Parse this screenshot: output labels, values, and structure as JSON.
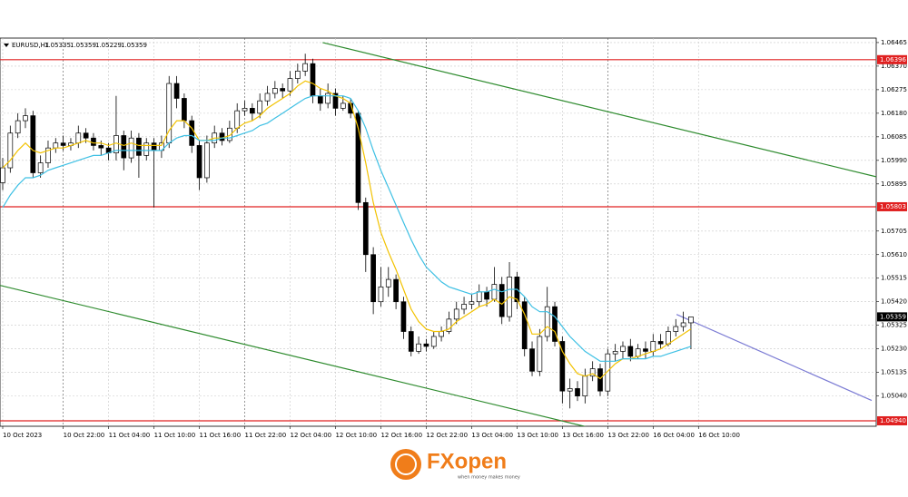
{
  "chart_data": {
    "type": "candlestick",
    "symbol": "EURUSD,H1",
    "ylim": [
      1.04918,
      1.06483
    ],
    "yticks": [
      1.06465,
      {
        "value": 1.0637,
        "label": "1.06370"
      },
      1.06275,
      {
        "value": 1.0618,
        "label": "1.06180"
      },
      1.06085,
      {
        "value": 1.0599,
        "label": "1.05990"
      },
      1.05895,
      1.05705,
      {
        "value": 1.0561,
        "label": "1.05610"
      },
      1.05515,
      {
        "value": 1.0542,
        "label": "1.05420"
      },
      1.05325,
      {
        "value": 1.0523,
        "label": "1.05230"
      },
      1.05135,
      {
        "value": 1.0504,
        "label": "1.05040"
      }
    ],
    "xlim": [
      -0.36,
      115.5
    ],
    "xticks": [
      {
        "value": 0,
        "label": "10 Oct 2023"
      },
      {
        "value": 8,
        "label": "10 Oct 22:00"
      },
      {
        "value": 14,
        "label": "11 Oct 04:00"
      },
      {
        "value": 20,
        "label": "11 Oct 10:00"
      },
      {
        "value": 26,
        "label": "11 Oct 16:00"
      },
      {
        "value": 32,
        "label": "11 Oct 22:00"
      },
      {
        "value": 38,
        "label": "12 Oct 04:00"
      },
      {
        "value": 44,
        "label": "12 Oct 10:00"
      },
      {
        "value": 50,
        "label": "12 Oct 16:00"
      },
      {
        "value": 56,
        "label": "12 Oct 22:00"
      },
      {
        "value": 62,
        "label": "13 Oct 04:00"
      },
      {
        "value": 68,
        "label": "13 Oct 10:00"
      },
      {
        "value": 74,
        "label": "13 Oct 16:00"
      },
      {
        "value": 80,
        "label": "13 Oct 22:00"
      },
      {
        "value": 86,
        "label": "16 Oct 04:00"
      },
      {
        "value": 92,
        "label": "16 Oct 10:00"
      }
    ],
    "grid": true,
    "up_color": "#ffffff",
    "down_color": "#000000",
    "ohlc": {
      "open": [
        1.059,
        1.0596,
        1.061,
        1.0615,
        1.0617,
        1.0594,
        1.0598,
        1.0604,
        1.0606,
        1.0605,
        1.0606,
        1.061,
        1.0608,
        1.0605,
        1.0604,
        1.0602,
        1.0609,
        1.06,
        1.0608,
        1.0601,
        1.0606,
        1.0603,
        1.0606,
        1.063,
        1.0624,
        1.0615,
        1.0605,
        1.0592,
        1.0606,
        1.061,
        1.0607,
        1.0612,
        1.0619,
        1.062,
        1.0618,
        1.0623,
        1.0626,
        1.0628,
        1.0627,
        1.0632,
        1.0635,
        1.0638,
        1.0625,
        1.0622,
        1.0626,
        1.062,
        1.0622,
        1.0618,
        1.0582,
        1.0561,
        1.0542,
        1.0548,
        1.0551,
        1.0542,
        1.053,
        1.0522,
        1.0525,
        1.0524,
        1.0528,
        1.053,
        1.0535,
        1.0539,
        1.0541,
        1.0542,
        1.0546,
        1.0543,
        1.0549,
        1.0536,
        1.0552,
        1.0542,
        1.0523,
        1.0514,
        1.0528,
        1.054,
        1.0526,
        1.0506,
        1.0507,
        1.0504,
        1.0512,
        1.0515,
        1.0506,
        1.0521,
        1.0522,
        1.0524,
        1.052,
        1.0523,
        1.0522,
        1.0526,
        1.0525,
        1.053,
        1.0532,
        1.05335
      ],
      "high": [
        1.06,
        1.0613,
        1.0618,
        1.062,
        1.0619,
        1.0601,
        1.0607,
        1.0608,
        1.0609,
        1.0608,
        1.0613,
        1.0612,
        1.061,
        1.0607,
        1.0606,
        1.0625,
        1.0611,
        1.0611,
        1.061,
        1.0608,
        1.0608,
        1.0609,
        1.0633,
        1.0633,
        1.0626,
        1.0617,
        1.0607,
        1.0609,
        1.0613,
        1.0612,
        1.0615,
        1.0622,
        1.0623,
        1.0622,
        1.0626,
        1.0629,
        1.0631,
        1.063,
        1.0635,
        1.0638,
        1.0642,
        1.064,
        1.0628,
        1.063,
        1.0628,
        1.0625,
        1.0624,
        1.0619,
        1.0584,
        1.0564,
        1.0556,
        1.0556,
        1.0553,
        1.0544,
        1.0532,
        1.0528,
        1.0527,
        1.053,
        1.0532,
        1.0538,
        1.0542,
        1.0544,
        1.0545,
        1.0549,
        1.0548,
        1.0556,
        1.0552,
        1.0558,
        1.0554,
        1.0544,
        1.0526,
        1.0531,
        1.0548,
        1.0542,
        1.0528,
        1.0511,
        1.051,
        1.0515,
        1.0518,
        1.0517,
        1.0523,
        1.0525,
        1.0526,
        1.0527,
        1.0525,
        1.0526,
        1.0529,
        1.0529,
        1.0532,
        1.0535,
        1.0538,
        1.05359
      ],
      "low": [
        1.0587,
        1.0594,
        1.0608,
        1.0612,
        1.0592,
        1.0592,
        1.0596,
        1.0602,
        1.0603,
        1.0603,
        1.0604,
        1.0606,
        1.0603,
        1.0601,
        1.0599,
        1.0599,
        1.0595,
        1.0598,
        1.0592,
        1.0599,
        1.058,
        1.06,
        1.0604,
        1.062,
        1.0612,
        1.0602,
        1.0587,
        1.059,
        1.0604,
        1.0605,
        1.0606,
        1.061,
        1.0617,
        1.0615,
        1.0616,
        1.0621,
        1.0624,
        1.0624,
        1.0625,
        1.063,
        1.0633,
        1.0622,
        1.0619,
        1.062,
        1.0617,
        1.0619,
        1.0616,
        1.0579,
        1.0554,
        1.0537,
        1.054,
        1.0544,
        1.0539,
        1.0527,
        1.052,
        1.0521,
        1.0522,
        1.0523,
        1.0526,
        1.0529,
        1.0533,
        1.0537,
        1.0539,
        1.054,
        1.054,
        1.0542,
        1.0533,
        1.0534,
        1.0539,
        1.052,
        1.0512,
        1.0512,
        1.0526,
        1.0524,
        1.0501,
        1.0499,
        1.0502,
        1.0501,
        1.051,
        1.0504,
        1.0504,
        1.0518,
        1.0519,
        1.0518,
        1.0519,
        1.0519,
        1.052,
        1.0523,
        1.0524,
        1.0528,
        1.053,
        1.05229
      ],
      "close": [
        1.0596,
        1.061,
        1.0615,
        1.0617,
        1.0594,
        1.0598,
        1.0604,
        1.0606,
        1.0605,
        1.0606,
        1.061,
        1.0608,
        1.0605,
        1.0604,
        1.0602,
        1.0609,
        1.06,
        1.0608,
        1.0601,
        1.0606,
        1.0603,
        1.0606,
        1.063,
        1.0624,
        1.0615,
        1.0605,
        1.0592,
        1.0606,
        1.061,
        1.0607,
        1.0612,
        1.0619,
        1.062,
        1.0618,
        1.0623,
        1.0626,
        1.0628,
        1.0627,
        1.0632,
        1.0635,
        1.0638,
        1.0625,
        1.0622,
        1.0626,
        1.062,
        1.0622,
        1.0618,
        1.0582,
        1.0561,
        1.0542,
        1.0548,
        1.0551,
        1.0542,
        1.053,
        1.0522,
        1.0525,
        1.0524,
        1.0528,
        1.053,
        1.0535,
        1.0539,
        1.0541,
        1.0542,
        1.0546,
        1.0543,
        1.0549,
        1.0536,
        1.0552,
        1.0542,
        1.0523,
        1.0514,
        1.0528,
        1.054,
        1.0526,
        1.0506,
        1.0507,
        1.0504,
        1.0512,
        1.0515,
        1.0506,
        1.0521,
        1.0522,
        1.0524,
        1.052,
        1.0523,
        1.0522,
        1.0526,
        1.0525,
        1.053,
        1.0532,
        1.05335,
        1.05359
      ]
    },
    "series": [
      {
        "color": "#f2c200",
        "values": [
          1.0596,
          1.0599,
          1.0603,
          1.0606,
          1.0603,
          1.0602,
          1.0603,
          1.0604,
          1.0604,
          1.0605,
          1.0606,
          1.0607,
          1.0606,
          1.0606,
          1.0605,
          1.0606,
          1.0605,
          1.0606,
          1.0605,
          1.0605,
          1.0605,
          1.0605,
          1.0611,
          1.0615,
          1.0615,
          1.0612,
          1.0607,
          1.0607,
          1.0608,
          1.0608,
          1.0609,
          1.0612,
          1.0614,
          1.0615,
          1.0617,
          1.062,
          1.0622,
          1.0624,
          1.0626,
          1.0629,
          1.0631,
          1.063,
          1.0628,
          1.0627,
          1.0625,
          1.0624,
          1.0622,
          1.0612,
          1.0598,
          1.0582,
          1.057,
          1.0562,
          1.0555,
          1.0547,
          1.0539,
          1.0534,
          1.0531,
          1.053,
          1.053,
          1.0531,
          1.0534,
          1.0536,
          1.0538,
          1.054,
          1.0541,
          1.0543,
          1.0541,
          1.0544,
          1.0543,
          1.0537,
          1.0529,
          1.0529,
          1.0532,
          1.053,
          1.0522,
          1.0517,
          1.0513,
          1.0512,
          1.0513,
          1.0511,
          1.0514,
          1.0517,
          1.0519,
          1.0519,
          1.052,
          1.0521,
          1.0522,
          1.0523,
          1.0525,
          1.0527,
          1.0529,
          1.0531
        ]
      },
      {
        "color": "#3ec0e4",
        "values": [
          1.058,
          1.0585,
          1.0589,
          1.0592,
          1.0592,
          1.0593,
          1.0595,
          1.0596,
          1.0597,
          1.0598,
          1.0599,
          1.06,
          1.0601,
          1.0601,
          1.0602,
          1.0603,
          1.0603,
          1.0603,
          1.0603,
          1.0603,
          1.0603,
          1.0603,
          1.0606,
          1.0608,
          1.0609,
          1.0609,
          1.0607,
          1.0607,
          1.0607,
          1.0608,
          1.0608,
          1.0609,
          1.061,
          1.0611,
          1.0613,
          1.0614,
          1.0616,
          1.0618,
          1.062,
          1.0622,
          1.0624,
          1.0625,
          1.0625,
          1.0625,
          1.0625,
          1.0625,
          1.0624,
          1.0619,
          1.0612,
          1.0603,
          1.0595,
          1.0588,
          1.0581,
          1.0574,
          1.0567,
          1.0561,
          1.0556,
          1.0553,
          1.055,
          1.0548,
          1.0547,
          1.0546,
          1.0545,
          1.0546,
          1.0546,
          1.0547,
          1.0546,
          1.0547,
          1.0547,
          1.0544,
          1.054,
          1.0538,
          1.0538,
          1.0536,
          1.0532,
          1.0528,
          1.0525,
          1.0522,
          1.052,
          1.0518,
          1.0518,
          1.0518,
          1.0519,
          1.0519,
          1.0519,
          1.0519,
          1.052,
          1.052,
          1.0521,
          1.0522,
          1.0523,
          1.0524
        ]
      }
    ],
    "trendlines": [
      {
        "color": "#2e8b2e",
        "x": [
          42.3,
          115.5
        ],
        "y": [
          1.06465,
          1.05924
        ]
      },
      {
        "color": "#2e8b2e",
        "x": [
          -0.36,
          77.7
        ],
        "y": [
          1.05486,
          1.04912
        ]
      },
      {
        "color": "#7b7bd4",
        "x": [
          89.1,
          114.9
        ],
        "y": [
          1.05369,
          1.05022
        ]
      }
    ],
    "levels": [
      {
        "color": "#e02020",
        "value": 1.06396,
        "label": "1.06396"
      },
      {
        "color": "#e02020",
        "value": 1.05803,
        "label": "1.05803"
      },
      {
        "color": "#e02020",
        "value": 1.0494,
        "label": "1.04940"
      }
    ]
  },
  "logo": {
    "name": "FXopen",
    "tagline": "when money makes money"
  }
}
